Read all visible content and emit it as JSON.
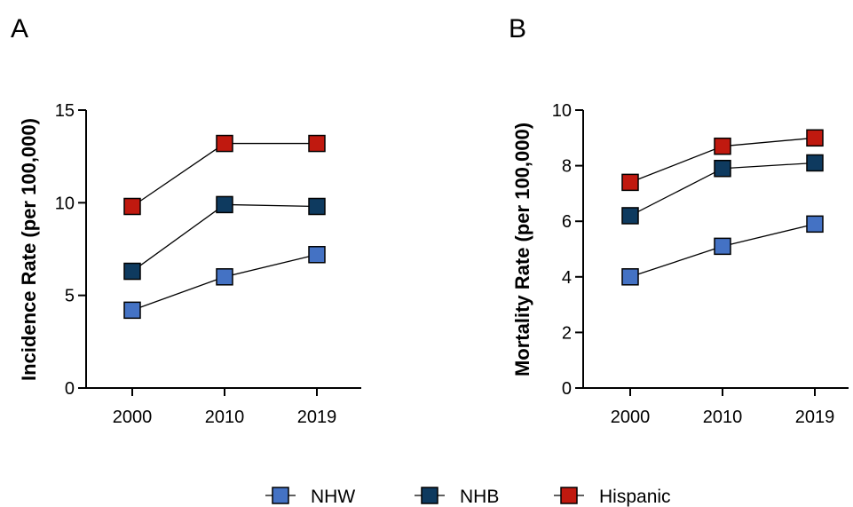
{
  "colors": {
    "NHW": "#4472c4",
    "NHB": "#0e3a5f",
    "Hispanic": "#c0190f"
  },
  "legend": [
    {
      "label": "NHW",
      "color": "#4472c4"
    },
    {
      "label": "NHB",
      "color": "#0e3a5f"
    },
    {
      "label": "Hispanic",
      "color": "#c0190f"
    }
  ],
  "chart_data": [
    {
      "panel": "A",
      "type": "line",
      "x": [
        "2000",
        "2010",
        "2019"
      ],
      "ylabel": "Incidence Rate (per 100,000)",
      "ylim": [
        0,
        15
      ],
      "yticks": [
        0,
        5,
        10,
        15
      ],
      "grid": false,
      "legend": "bottom",
      "series": [
        {
          "name": "NHW",
          "values": [
            4.2,
            6.0,
            7.2
          ]
        },
        {
          "name": "NHB",
          "values": [
            6.3,
            9.9,
            9.8
          ]
        },
        {
          "name": "Hispanic",
          "values": [
            9.8,
            13.2,
            13.2
          ]
        }
      ]
    },
    {
      "panel": "B",
      "type": "line",
      "x": [
        "2000",
        "2010",
        "2019"
      ],
      "ylabel": "Mortality Rate (per 100,000)",
      "ylim": [
        0,
        10
      ],
      "yticks": [
        0,
        2,
        4,
        6,
        8,
        10
      ],
      "grid": false,
      "legend": "bottom",
      "series": [
        {
          "name": "NHW",
          "values": [
            4.0,
            5.1,
            5.9
          ]
        },
        {
          "name": "NHB",
          "values": [
            6.2,
            7.9,
            8.1
          ]
        },
        {
          "name": "Hispanic",
          "values": [
            7.4,
            8.7,
            9.0
          ]
        }
      ]
    }
  ]
}
